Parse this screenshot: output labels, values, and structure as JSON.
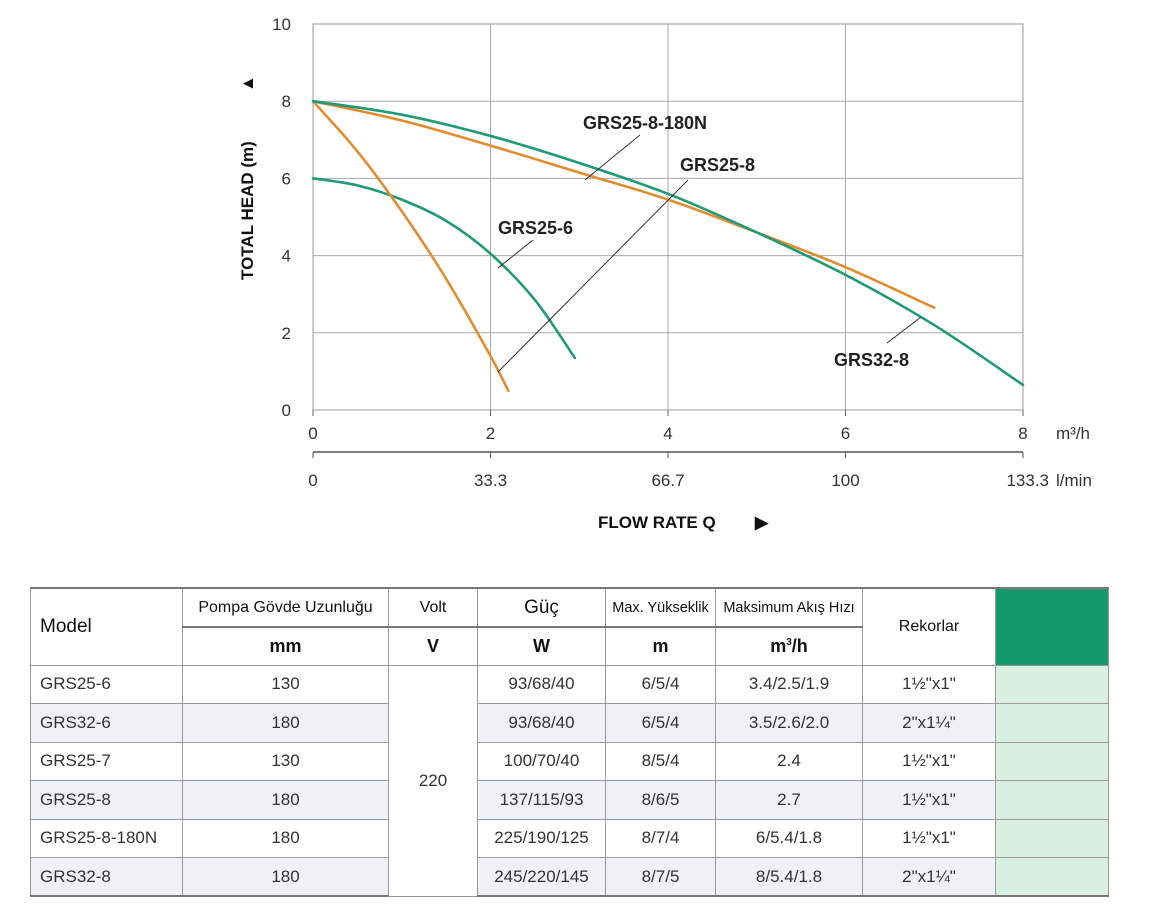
{
  "chart_data": {
    "type": "line",
    "ylabel": "TOTAL HEAD (m)",
    "ylabel_arrow": "▲",
    "xlabel": "FLOW RATE Q",
    "xlabel_arrow": "▶",
    "ylim": [
      0,
      10
    ],
    "xlim": [
      0,
      8
    ],
    "y_ticks": [
      "0",
      "2",
      "4",
      "6",
      "8",
      "10"
    ],
    "x_ticks_m3h": [
      "0",
      "2",
      "4",
      "6",
      "8"
    ],
    "x_unit_m3h": "m³/h",
    "x_ticks_lmin": [
      "0",
      "33.3",
      "66.7",
      "100",
      "133.3"
    ],
    "x_unit_lmin": "l/min",
    "grid": true,
    "series": [
      {
        "name": "GRS25-6",
        "color": "#1f9a76",
        "x": [
          0,
          0.5,
          1,
          1.5,
          2,
          2.5,
          2.95
        ],
        "y": [
          6.0,
          5.82,
          5.45,
          4.9,
          4.05,
          2.85,
          1.35
        ]
      },
      {
        "name": "GRS25-8",
        "color": "#e28c2f",
        "x": [
          0,
          0.5,
          1,
          1.5,
          2,
          2.2
        ],
        "y": [
          8.0,
          6.7,
          5.15,
          3.4,
          1.4,
          0.5
        ]
      },
      {
        "name": "GRS25-8-180N",
        "color": "#e28c2f",
        "x": [
          0,
          1,
          2,
          3,
          4,
          5,
          6,
          7
        ],
        "y": [
          8.0,
          7.5,
          6.85,
          6.15,
          5.45,
          4.6,
          3.7,
          2.65
        ]
      },
      {
        "name": "GRS32-8",
        "color": "#1f9a76",
        "x": [
          0,
          1,
          2,
          3,
          4,
          5,
          6,
          7,
          8
        ],
        "y": [
          8.0,
          7.65,
          7.1,
          6.4,
          5.6,
          4.6,
          3.5,
          2.2,
          0.65
        ]
      }
    ]
  },
  "table": {
    "header": {
      "model": "Model",
      "length": "Pompa Gövde Uzunluğu",
      "volt": "Volt",
      "power": "Güç",
      "max_head": "Max. Yükseklik",
      "max_flow": "Maksimum Akış Hızı",
      "fittings": "Rekorlar"
    },
    "units": {
      "length": "mm",
      "volt": "V",
      "power": "W",
      "max_head": "m",
      "max_flow_base": "m",
      "max_flow_sup": "3",
      "max_flow_tail": "/h"
    },
    "swatch_color": "#139a6b",
    "volt_value": "220",
    "rows": [
      {
        "model": "GRS25-6",
        "length": "130",
        "power": "93/68/40",
        "head": "6/5/4",
        "flow": "3.4/2.5/1.9",
        "fitting": "1½\"x1\""
      },
      {
        "model": "GRS32-6",
        "length": "180",
        "power": "93/68/40",
        "head": "6/5/4",
        "flow": "3.5/2.6/2.0",
        "fitting": "2\"x1¼\""
      },
      {
        "model": "GRS25-7",
        "length": "130",
        "power": "100/70/40",
        "head": "8/5/4",
        "flow": "2.4",
        "fitting": "1½\"x1\""
      },
      {
        "model": "GRS25-8",
        "length": "180",
        "power": "137/115/93",
        "head": "8/6/5",
        "flow": "2.7",
        "fitting": "1½\"x1\""
      },
      {
        "model": "GRS25-8-180N",
        "length": "180",
        "power": "225/190/125",
        "head": "8/7/4",
        "flow": "6/5.4/1.8",
        "fitting": "1½\"x1\""
      },
      {
        "model": "GRS32-8",
        "length": "180",
        "power": "245/220/145",
        "head": "8/7/5",
        "flow": "8/5.4/1.8",
        "fitting": "2\"x1¼\""
      }
    ]
  }
}
